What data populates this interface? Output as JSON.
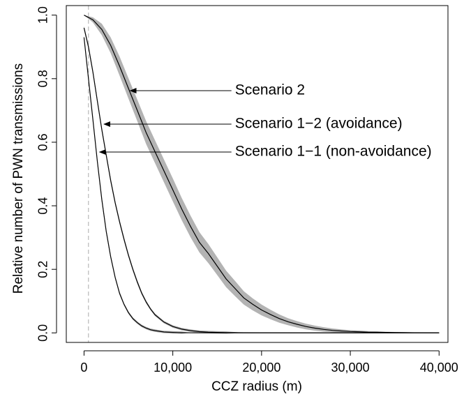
{
  "chart_data": {
    "type": "line",
    "title": "",
    "xlabel": "CCZ radius (m)",
    "ylabel": "Relative number of PWN transmissions",
    "xlim": [
      -2000,
      41000
    ],
    "ylim": [
      -0.03,
      1.03
    ],
    "x_ticks": [
      0,
      10000,
      20000,
      30000,
      40000
    ],
    "x_tick_labels": [
      "0",
      "10,000",
      "20,000",
      "30,000",
      "40,000"
    ],
    "y_ticks": [
      0,
      0.2,
      0.4,
      0.6,
      0.8,
      1.0
    ],
    "y_tick_labels": [
      "0.0",
      "0.2",
      "0.4",
      "0.6",
      "0.8",
      "1.0"
    ],
    "grid": false,
    "reference_line": {
      "x": 500,
      "style": "dashed",
      "color": "#aaaaaa"
    },
    "series": [
      {
        "name": "Scenario 2",
        "color": "#000000",
        "band_color": "#b3b3b3",
        "x": [
          0,
          1000,
          2000,
          3000,
          4000,
          5000,
          6000,
          7000,
          8000,
          9000,
          10000,
          11000,
          12000,
          13000,
          14000,
          15000,
          16000,
          17000,
          18000,
          19000,
          20000,
          21000,
          22000,
          23000,
          24000,
          25000,
          26000,
          27000,
          28000,
          29000,
          30000,
          31000,
          32000,
          33000,
          34000,
          35000,
          36000,
          38000,
          40000
        ],
        "y": [
          1.0,
          0.985,
          0.955,
          0.905,
          0.84,
          0.77,
          0.7,
          0.63,
          0.57,
          0.51,
          0.45,
          0.39,
          0.335,
          0.285,
          0.25,
          0.21,
          0.17,
          0.14,
          0.11,
          0.09,
          0.072,
          0.058,
          0.045,
          0.035,
          0.027,
          0.02,
          0.015,
          0.011,
          0.008,
          0.006,
          0.0045,
          0.0035,
          0.0025,
          0.002,
          0.0015,
          0.001,
          0.0007,
          0.0003,
          0.0
        ],
        "band_halfwidth": [
          0.0,
          0.008,
          0.018,
          0.025,
          0.03,
          0.032,
          0.034,
          0.036,
          0.036,
          0.036,
          0.036,
          0.035,
          0.034,
          0.032,
          0.03,
          0.028,
          0.026,
          0.024,
          0.021,
          0.019,
          0.017,
          0.015,
          0.013,
          0.011,
          0.01,
          0.009,
          0.008,
          0.007,
          0.006,
          0.005,
          0.004,
          0.004,
          0.003,
          0.003,
          0.002,
          0.002,
          0.002,
          0.001,
          0.0
        ]
      },
      {
        "name": "Scenario 1−2 (avoidance)",
        "color": "#000000",
        "band_color": "#b3b3b3",
        "x": [
          0,
          500,
          1000,
          1500,
          2000,
          2500,
          3000,
          3500,
          4000,
          4500,
          5000,
          5500,
          6000,
          6500,
          7000,
          7500,
          8000,
          9000,
          10000,
          11000,
          12000,
          13000,
          14000,
          15000,
          16000,
          18000,
          20000,
          25000,
          30000,
          40000
        ],
        "y": [
          0.96,
          0.9,
          0.82,
          0.73,
          0.64,
          0.56,
          0.48,
          0.41,
          0.35,
          0.295,
          0.245,
          0.2,
          0.16,
          0.125,
          0.097,
          0.075,
          0.057,
          0.034,
          0.02,
          0.012,
          0.007,
          0.004,
          0.0025,
          0.0015,
          0.001,
          0.0005,
          0.0002,
          0.0,
          0.0,
          0.0
        ],
        "band_halfwidth": [
          0.006,
          0.007,
          0.008,
          0.008,
          0.008,
          0.008,
          0.008,
          0.007,
          0.007,
          0.007,
          0.006,
          0.006,
          0.006,
          0.005,
          0.005,
          0.004,
          0.004,
          0.003,
          0.003,
          0.002,
          0.002,
          0.001,
          0.001,
          0.001,
          0.0,
          0.0,
          0.0,
          0.0,
          0.0,
          0.0
        ]
      },
      {
        "name": "Scenario 1−1 (non-avoidance)",
        "color": "#000000",
        "band_color": "#b3b3b3",
        "x": [
          0,
          500,
          1000,
          1500,
          2000,
          2500,
          3000,
          3500,
          4000,
          4500,
          5000,
          5500,
          6000,
          6500,
          7000,
          7500,
          8000,
          9000,
          10000,
          11000,
          12000,
          14000,
          16000,
          20000,
          30000,
          40000
        ],
        "y": [
          0.93,
          0.8,
          0.67,
          0.54,
          0.42,
          0.32,
          0.24,
          0.175,
          0.125,
          0.09,
          0.064,
          0.045,
          0.032,
          0.022,
          0.015,
          0.01,
          0.007,
          0.003,
          0.0015,
          0.0007,
          0.0003,
          0.0001,
          0.0,
          0.0,
          0.0,
          0.0
        ],
        "band_halfwidth": [
          0.006,
          0.007,
          0.007,
          0.007,
          0.007,
          0.006,
          0.006,
          0.005,
          0.005,
          0.004,
          0.004,
          0.003,
          0.003,
          0.002,
          0.002,
          0.001,
          0.001,
          0.001,
          0.0,
          0.0,
          0.0,
          0.0,
          0.0,
          0.0,
          0.0,
          0.0
        ]
      }
    ],
    "annotations": [
      {
        "text": "Scenario 2",
        "series_index": 0,
        "arrow_to": {
          "x": 5200,
          "y": 0.775
        },
        "arrow_from_x": 17000
      },
      {
        "text": "Scenario 1−2 (avoidance)",
        "series_index": 1,
        "arrow_to": {
          "x": 2250,
          "y": 0.66
        },
        "arrow_from_x": 17000
      },
      {
        "text": "Scenario 1−1 (non-avoidance)",
        "series_index": 2,
        "arrow_to": {
          "x": 1750,
          "y": 0.58
        },
        "arrow_from_x": 17000
      }
    ]
  }
}
